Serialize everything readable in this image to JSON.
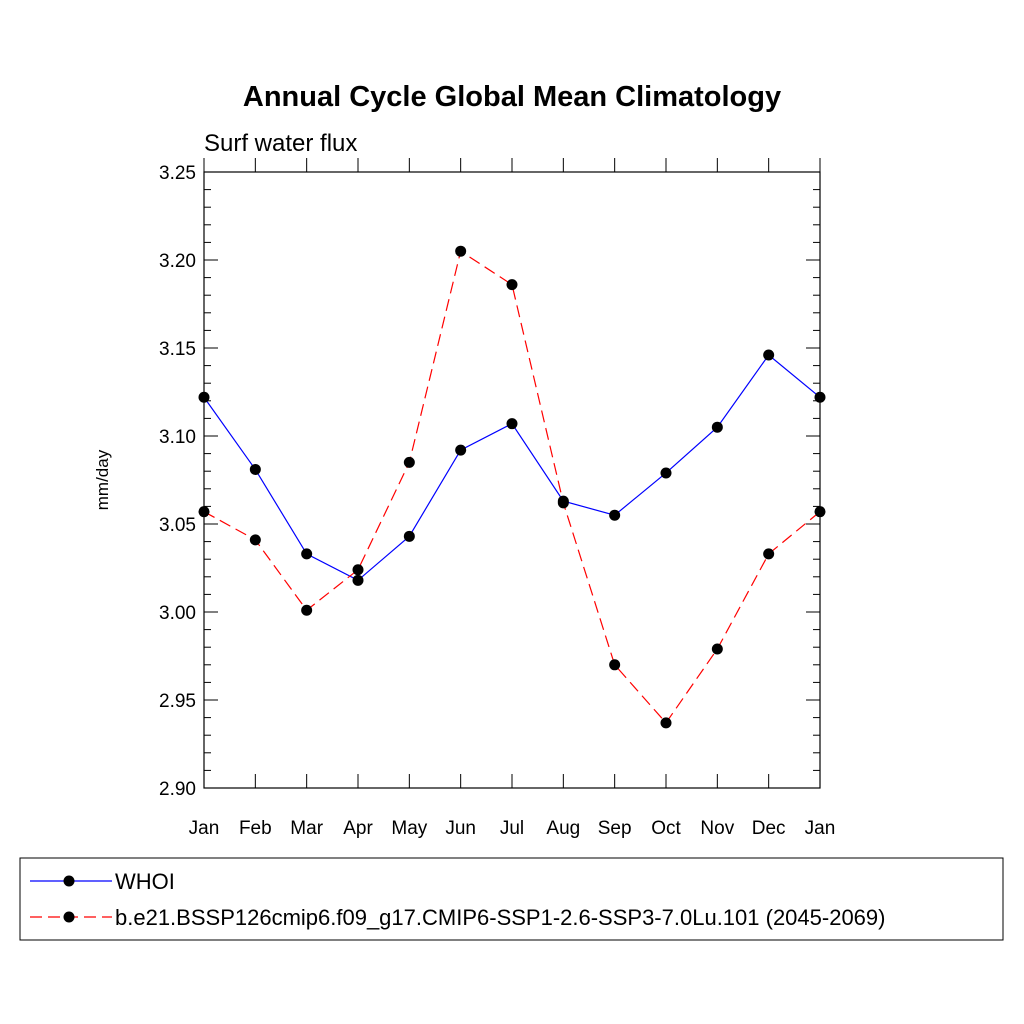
{
  "chart_data": {
    "type": "line",
    "title": "Annual Cycle Global Mean Climatology",
    "subtitle": "Surf water flux",
    "ylabel": "mm/day",
    "ylim": [
      2.9,
      3.25
    ],
    "yticks": [
      "2.90",
      "2.95",
      "3.00",
      "3.05",
      "3.10",
      "3.15",
      "3.20",
      "3.25"
    ],
    "ytick_values": [
      2.9,
      2.95,
      3.0,
      3.05,
      3.1,
      3.15,
      3.2,
      3.25
    ],
    "categories": [
      "Jan",
      "Feb",
      "Mar",
      "Apr",
      "May",
      "Jun",
      "Jul",
      "Aug",
      "Sep",
      "Oct",
      "Nov",
      "Dec",
      "Jan"
    ],
    "legend_position": "bottom",
    "series": [
      {
        "name": "WHOI",
        "color": "#0000ff",
        "dash": "solid",
        "values": [
          3.122,
          3.081,
          3.033,
          3.018,
          3.043,
          3.092,
          3.107,
          3.063,
          3.055,
          3.079,
          3.105,
          3.146,
          3.122
        ]
      },
      {
        "name": "b.e21.BSSP126cmip6.f09_g17.CMIP6-SSP1-2.6-SSP3-7.0Lu.101 (2045-2069)",
        "color": "#ff0000",
        "dash": "dashed",
        "values": [
          3.057,
          3.041,
          3.001,
          3.024,
          3.085,
          3.205,
          3.186,
          3.062,
          2.97,
          2.937,
          2.979,
          3.033,
          3.057
        ]
      }
    ]
  }
}
